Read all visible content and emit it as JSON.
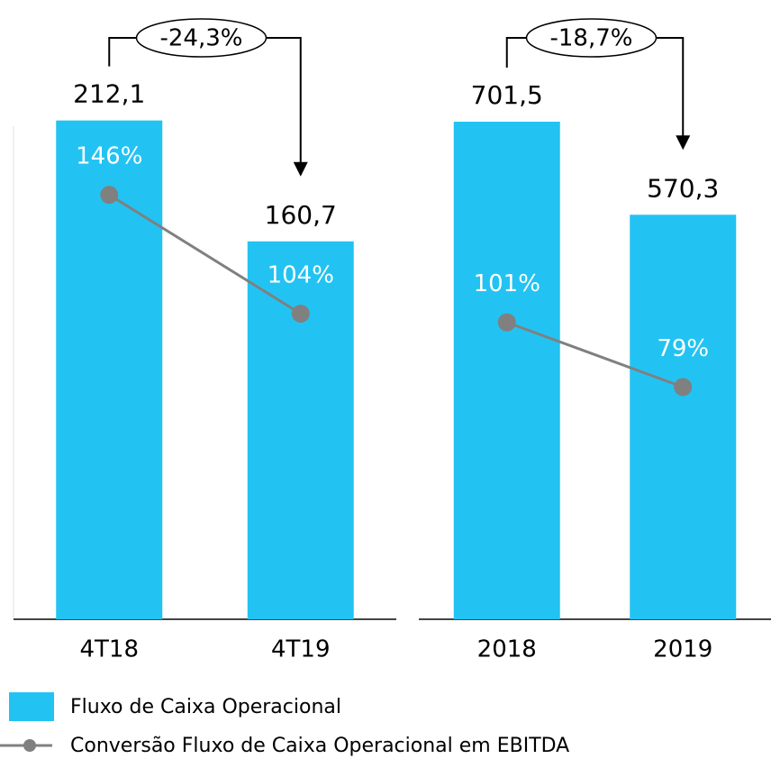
{
  "chart_data": [
    {
      "type": "bar",
      "categories": [
        "4T18",
        "4T19"
      ],
      "series": [
        {
          "name": "Fluxo de Caixa Operacional",
          "color": "#22c3f2",
          "values": [
            212.1,
            160.7
          ],
          "value_labels": [
            "212,1",
            "160,7"
          ]
        },
        {
          "name": "Conversão Fluxo de Caixa Operacional em EBITDA",
          "type": "line",
          "axis": "y2",
          "color": "#808080",
          "values": [
            146,
            104
          ],
          "value_labels": [
            "146%",
            "104%"
          ]
        }
      ],
      "ylim": [
        0,
        225
      ],
      "y2lim": [
        -4,
        183
      ],
      "annotation": "-24,3%"
    },
    {
      "type": "bar",
      "categories": [
        "2018",
        "2019"
      ],
      "series": [
        {
          "color": "#22c3f2",
          "values": [
            701.5,
            570.3
          ],
          "value_labels": [
            "701,5",
            "570,3"
          ]
        },
        {
          "type": "line",
          "axis": "y2",
          "color": "#808080",
          "values": [
            101,
            79
          ],
          "value_labels": [
            "101%",
            "79%"
          ]
        }
      ],
      "ylim": [
        0,
        746
      ],
      "y2lim": [
        0,
        180
      ],
      "annotation": "-18,7%"
    }
  ]
}
